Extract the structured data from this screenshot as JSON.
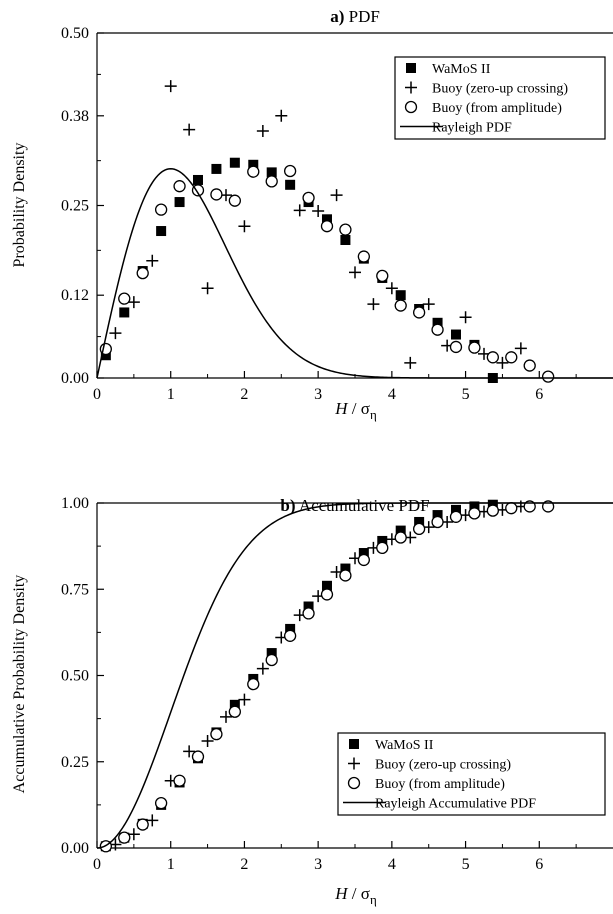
{
  "chart_data": [
    {
      "type": "scatter",
      "panel_label": "a)",
      "title": "PDF",
      "xlabel_italic": "H",
      "xlabel_sep": "/",
      "xlabel_sigma": "σ",
      "xlabel_sub": "η",
      "ylabel": "Probability Density",
      "xlim": [
        0,
        7
      ],
      "ylim": [
        0,
        0.5
      ],
      "xticks": [
        0,
        1,
        2,
        3,
        4,
        5,
        6
      ],
      "yticks": [
        0.0,
        0.12,
        0.25,
        0.38,
        0.5
      ],
      "ytick_labels": [
        "0.00",
        "0.12",
        "0.25",
        "0.38",
        "0.50"
      ],
      "grid": false,
      "legend_position": "top-right",
      "series": [
        {
          "name": "WaMoS II",
          "marker": "filled-square",
          "points": [
            [
              0.12,
              0.033
            ],
            [
              0.37,
              0.095
            ],
            [
              0.62,
              0.155
            ],
            [
              0.87,
              0.213
            ],
            [
              1.12,
              0.255
            ],
            [
              1.37,
              0.287
            ],
            [
              1.62,
              0.303
            ],
            [
              1.87,
              0.312
            ],
            [
              2.12,
              0.309
            ],
            [
              2.37,
              0.298
            ],
            [
              2.62,
              0.28
            ],
            [
              2.87,
              0.255
            ],
            [
              3.12,
              0.23
            ],
            [
              3.37,
              0.2
            ],
            [
              3.62,
              0.173
            ],
            [
              3.87,
              0.145
            ],
            [
              4.12,
              0.12
            ],
            [
              4.37,
              0.1
            ],
            [
              4.62,
              0.08
            ],
            [
              4.87,
              0.063
            ],
            [
              5.12,
              0.048
            ],
            [
              5.37,
              0.0
            ]
          ]
        },
        {
          "name": "Buoy (zero-up crossing)",
          "marker": "plus",
          "points": [
            [
              0.25,
              0.065
            ],
            [
              0.5,
              0.11
            ],
            [
              0.75,
              0.17
            ],
            [
              1.0,
              0.423
            ],
            [
              1.25,
              0.36
            ],
            [
              1.5,
              0.13
            ],
            [
              1.75,
              0.265
            ],
            [
              2.0,
              0.22
            ],
            [
              2.25,
              0.358
            ],
            [
              2.5,
              0.38
            ],
            [
              2.75,
              0.243
            ],
            [
              3.0,
              0.242
            ],
            [
              3.25,
              0.265
            ],
            [
              3.5,
              0.153
            ],
            [
              3.75,
              0.107
            ],
            [
              4.0,
              0.13
            ],
            [
              4.25,
              0.022
            ],
            [
              4.5,
              0.107
            ],
            [
              4.75,
              0.047
            ],
            [
              5.0,
              0.088
            ],
            [
              5.25,
              0.035
            ],
            [
              5.5,
              0.022
            ],
            [
              5.75,
              0.043
            ]
          ]
        },
        {
          "name": "Buoy (from amplitude)",
          "marker": "open-circle",
          "points": [
            [
              0.12,
              0.042
            ],
            [
              0.37,
              0.115
            ],
            [
              0.62,
              0.152
            ],
            [
              0.87,
              0.244
            ],
            [
              1.12,
              0.278
            ],
            [
              1.37,
              0.272
            ],
            [
              1.62,
              0.266
            ],
            [
              1.87,
              0.257
            ],
            [
              2.12,
              0.299
            ],
            [
              2.37,
              0.285
            ],
            [
              2.62,
              0.3
            ],
            [
              2.87,
              0.261
            ],
            [
              3.12,
              0.22
            ],
            [
              3.37,
              0.215
            ],
            [
              3.62,
              0.176
            ],
            [
              3.87,
              0.148
            ],
            [
              4.12,
              0.105
            ],
            [
              4.37,
              0.095
            ],
            [
              4.62,
              0.07
            ],
            [
              4.87,
              0.045
            ],
            [
              5.12,
              0.044
            ],
            [
              5.37,
              0.03
            ],
            [
              5.62,
              0.03
            ],
            [
              5.87,
              0.018
            ],
            [
              6.12,
              0.002
            ]
          ]
        },
        {
          "name": "Rayleigh PDF",
          "line": "solid",
          "function": "rayleigh_pdf",
          "sigma": 2.0
        }
      ]
    },
    {
      "type": "scatter",
      "panel_label": "b)",
      "title": "Accumulative PDF",
      "xlabel_italic": "H",
      "xlabel_sep": "/",
      "xlabel_sigma": "σ",
      "xlabel_sub": "η",
      "ylabel": "Accumulative Probability Density",
      "xlim": [
        0,
        7
      ],
      "ylim": [
        0,
        1
      ],
      "xticks": [
        0,
        1,
        2,
        3,
        4,
        5,
        6
      ],
      "yticks": [
        0.0,
        0.25,
        0.5,
        0.75,
        1.0
      ],
      "ytick_labels": [
        "0.00",
        "0.25",
        "0.50",
        "0.75",
        "1.00"
      ],
      "grid": false,
      "legend_position": "bottom-right",
      "series": [
        {
          "name": "WaMoS II",
          "marker": "filled-square",
          "points": [
            [
              0.12,
              0.005
            ],
            [
              0.37,
              0.03
            ],
            [
              0.62,
              0.07
            ],
            [
              0.87,
              0.125
            ],
            [
              1.12,
              0.19
            ],
            [
              1.37,
              0.26
            ],
            [
              1.62,
              0.335
            ],
            [
              1.87,
              0.415
            ],
            [
              2.12,
              0.49
            ],
            [
              2.37,
              0.565
            ],
            [
              2.62,
              0.635
            ],
            [
              2.87,
              0.7
            ],
            [
              3.12,
              0.76
            ],
            [
              3.37,
              0.81
            ],
            [
              3.62,
              0.855
            ],
            [
              3.87,
              0.89
            ],
            [
              4.12,
              0.92
            ],
            [
              4.37,
              0.945
            ],
            [
              4.62,
              0.965
            ],
            [
              4.87,
              0.98
            ],
            [
              5.12,
              0.99
            ],
            [
              5.37,
              0.995
            ]
          ]
        },
        {
          "name": "Buoy (zero-up crossing)",
          "marker": "plus",
          "points": [
            [
              0.25,
              0.01
            ],
            [
              0.5,
              0.04
            ],
            [
              0.75,
              0.08
            ],
            [
              1.0,
              0.195
            ],
            [
              1.25,
              0.28
            ],
            [
              1.5,
              0.31
            ],
            [
              1.75,
              0.38
            ],
            [
              2.0,
              0.43
            ],
            [
              2.25,
              0.52
            ],
            [
              2.5,
              0.61
            ],
            [
              2.75,
              0.675
            ],
            [
              3.0,
              0.73
            ],
            [
              3.25,
              0.8
            ],
            [
              3.5,
              0.84
            ],
            [
              3.75,
              0.87
            ],
            [
              4.0,
              0.895
            ],
            [
              4.25,
              0.9
            ],
            [
              4.5,
              0.93
            ],
            [
              4.75,
              0.945
            ],
            [
              5.0,
              0.965
            ],
            [
              5.25,
              0.975
            ],
            [
              5.5,
              0.98
            ],
            [
              5.75,
              0.99
            ]
          ]
        },
        {
          "name": "Buoy (from amplitude)",
          "marker": "open-circle",
          "points": [
            [
              0.12,
              0.005
            ],
            [
              0.37,
              0.03
            ],
            [
              0.62,
              0.068
            ],
            [
              0.87,
              0.13
            ],
            [
              1.12,
              0.195
            ],
            [
              1.37,
              0.265
            ],
            [
              1.62,
              0.33
            ],
            [
              1.87,
              0.395
            ],
            [
              2.12,
              0.475
            ],
            [
              2.37,
              0.545
            ],
            [
              2.62,
              0.615
            ],
            [
              2.87,
              0.68
            ],
            [
              3.12,
              0.735
            ],
            [
              3.37,
              0.79
            ],
            [
              3.62,
              0.835
            ],
            [
              3.87,
              0.87
            ],
            [
              4.12,
              0.9
            ],
            [
              4.37,
              0.925
            ],
            [
              4.62,
              0.945
            ],
            [
              4.87,
              0.96
            ],
            [
              5.12,
              0.97
            ],
            [
              5.37,
              0.978
            ],
            [
              5.62,
              0.985
            ],
            [
              5.87,
              0.99
            ],
            [
              6.12,
              0.99
            ]
          ]
        },
        {
          "name": "Rayleigh Accumulative PDF",
          "line": "solid",
          "function": "rayleigh_cdf",
          "sigma": 2.0
        }
      ]
    }
  ]
}
